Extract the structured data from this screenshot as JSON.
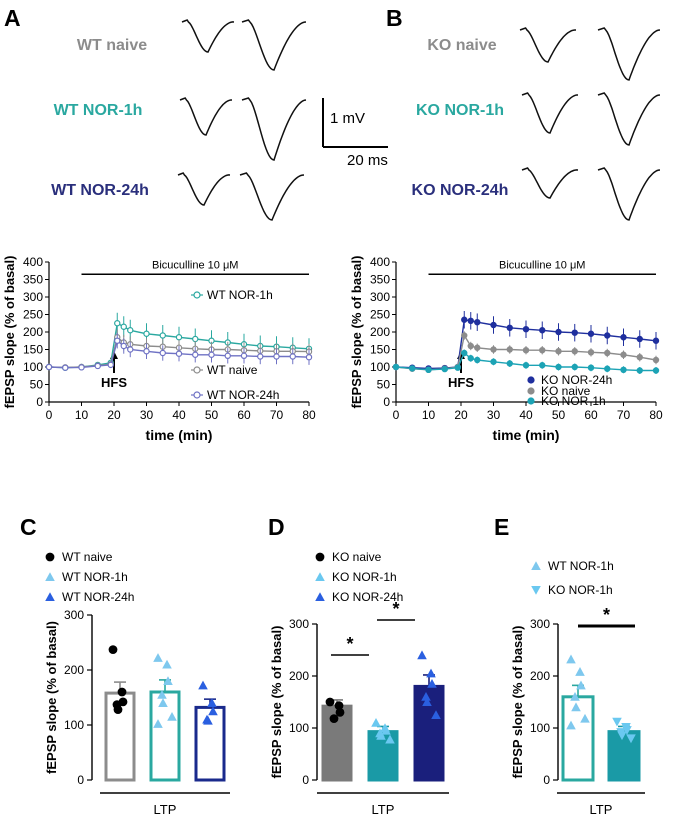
{
  "panel_letters": {
    "a": "A",
    "b": "B",
    "c": "C",
    "d": "D",
    "e": "E"
  },
  "traces_a": {
    "rows": [
      {
        "label": "WT naive",
        "color": "#8c8c8c"
      },
      {
        "label": "WT NOR-1h",
        "color": "#2aa8a0"
      },
      {
        "label": "WT NOR-24h",
        "color": "#2a2f7c"
      }
    ]
  },
  "traces_b": {
    "rows": [
      {
        "label": "KO naive",
        "color": "#8c8c8c"
      },
      {
        "label": "KO NOR-1h",
        "color": "#2aa8a0"
      },
      {
        "label": "KO NOR-24h",
        "color": "#2a2f7c"
      }
    ]
  },
  "scale_bar": {
    "vertical": "1 mV",
    "horizontal": "20 ms"
  },
  "chart_data": [
    {
      "id": "A-timecourse",
      "type": "line",
      "xlabel": "time (min)",
      "ylabel": "fEPSP slope (% of basal)",
      "xlim": [
        0,
        80
      ],
      "ylim": [
        0,
        400
      ],
      "xticks": [
        0,
        10,
        20,
        30,
        40,
        50,
        60,
        70,
        80
      ],
      "yticks": [
        0,
        50,
        100,
        150,
        200,
        250,
        300,
        350,
        400
      ],
      "annotations": {
        "drug": "Bicuculline 10 μM",
        "drug_start": 10,
        "drug_end": 80,
        "stim": "HFS",
        "stim_time": 20
      },
      "series": [
        {
          "name": "WT NOR-1h",
          "color": "#2aa8a0",
          "marker": "open-circle",
          "x": [
            0,
            5,
            10,
            15,
            19,
            21,
            23,
            25,
            30,
            35,
            40,
            45,
            50,
            55,
            60,
            65,
            70,
            75,
            80
          ],
          "y": [
            100,
            98,
            100,
            106,
            112,
            225,
            215,
            205,
            195,
            190,
            185,
            180,
            175,
            170,
            165,
            160,
            158,
            155,
            152
          ],
          "err": 30
        },
        {
          "name": "WT naive",
          "color": "#8c8c8c",
          "marker": "open-circle",
          "x": [
            0,
            5,
            10,
            15,
            19,
            21,
            23,
            25,
            30,
            35,
            40,
            45,
            50,
            55,
            60,
            65,
            70,
            75,
            80
          ],
          "y": [
            100,
            99,
            100,
            104,
            108,
            185,
            170,
            165,
            160,
            158,
            155,
            152,
            150,
            150,
            148,
            146,
            145,
            145,
            144
          ],
          "err": 22
        },
        {
          "name": "WT NOR-24h",
          "color": "#6f72c4",
          "marker": "open-circle",
          "x": [
            0,
            5,
            10,
            15,
            19,
            21,
            23,
            25,
            30,
            35,
            40,
            45,
            50,
            55,
            60,
            65,
            70,
            75,
            80
          ],
          "y": [
            100,
            98,
            99,
            103,
            106,
            175,
            160,
            150,
            145,
            140,
            138,
            135,
            135,
            132,
            132,
            130,
            130,
            130,
            128
          ],
          "err": 22
        }
      ],
      "legend": [
        "WT NOR-1h",
        "WT naive",
        "WT NOR-24h"
      ]
    },
    {
      "id": "B-timecourse",
      "type": "line",
      "xlabel": "time (min)",
      "ylabel": "fEPSP slope (% of basal)",
      "xlim": [
        0,
        80
      ],
      "ylim": [
        0,
        400
      ],
      "xticks": [
        0,
        10,
        20,
        30,
        40,
        50,
        60,
        70,
        80
      ],
      "yticks": [
        0,
        50,
        100,
        150,
        200,
        250,
        300,
        350,
        400
      ],
      "annotations": {
        "drug": "Bicuculline 10 μM",
        "drug_start": 10,
        "drug_end": 80,
        "stim": "HFS",
        "stim_time": 20
      },
      "series": [
        {
          "name": "KO NOR-24h",
          "color": "#1f2f9e",
          "marker": "filled-circle",
          "x": [
            0,
            5,
            10,
            15,
            19,
            21,
            23,
            25,
            30,
            35,
            40,
            45,
            50,
            55,
            60,
            65,
            70,
            75,
            80
          ],
          "y": [
            100,
            98,
            96,
            97,
            100,
            235,
            232,
            228,
            220,
            212,
            208,
            205,
            200,
            198,
            195,
            190,
            185,
            180,
            175
          ],
          "err": 25
        },
        {
          "name": "KO naive",
          "color": "#8c8c8c",
          "marker": "filled-circle",
          "x": [
            0,
            5,
            10,
            15,
            19,
            21,
            23,
            25,
            30,
            35,
            40,
            45,
            50,
            55,
            60,
            65,
            70,
            75,
            80
          ],
          "y": [
            100,
            95,
            92,
            95,
            100,
            190,
            160,
            155,
            150,
            150,
            148,
            148,
            145,
            145,
            142,
            140,
            135,
            128,
            120
          ],
          "err": 12
        },
        {
          "name": "KO NOR-1h",
          "color": "#1ca3b5",
          "marker": "filled-circle",
          "x": [
            0,
            5,
            10,
            15,
            19,
            21,
            23,
            25,
            30,
            35,
            40,
            45,
            50,
            55,
            60,
            65,
            70,
            75,
            80
          ],
          "y": [
            100,
            96,
            92,
            94,
            98,
            140,
            125,
            120,
            115,
            110,
            105,
            105,
            100,
            100,
            98,
            95,
            92,
            90,
            90
          ],
          "err": 10
        }
      ],
      "legend": [
        "KO NOR-24h",
        "KO naive",
        "KO NOR-1h"
      ]
    },
    {
      "id": "C-bars",
      "type": "bar",
      "ylabel": "fEPSP slope (% of basal)",
      "xlabel": "LTP",
      "ylim": [
        0,
        300
      ],
      "yticks": [
        0,
        100,
        200,
        300
      ],
      "legend": [
        "WT naive",
        "WT NOR-1h",
        "WT NOR-24h"
      ],
      "bars": [
        {
          "name": "WT naive",
          "value": 158,
          "sem": 20,
          "edge": "#8c8c8c",
          "fill": "#ffffff",
          "marker": "dot",
          "mcolor": "#000000",
          "points": [
            237,
            160,
            142,
            137,
            128
          ]
        },
        {
          "name": "WT NOR-1h",
          "value": 160,
          "sem": 22,
          "edge": "#2aa8a0",
          "fill": "#ffffff",
          "marker": "tri-up",
          "mcolor": "#7ec8ee",
          "points": [
            222,
            210,
            180,
            155,
            140,
            115,
            102
          ]
        },
        {
          "name": "WT NOR-24h",
          "value": 132,
          "sem": 15,
          "edge": "#1a2a8c",
          "fill": "#ffffff",
          "marker": "tri-up",
          "mcolor": "#2a5fe0",
          "points": [
            172,
            140,
            125,
            110,
            108
          ]
        }
      ]
    },
    {
      "id": "D-bars",
      "type": "bar",
      "ylabel": "fEPSP slope (% of basal)",
      "xlabel": "LTP",
      "ylim": [
        0,
        300
      ],
      "yticks": [
        0,
        100,
        200,
        300
      ],
      "legend": [
        "KO naive",
        "KO NOR-1h",
        "KO NOR-24h"
      ],
      "significance": "*",
      "bars": [
        {
          "name": "KO naive",
          "value": 142,
          "sem": 12,
          "edge": "#7a7a7a",
          "fill": "#7a7a7a",
          "marker": "dot",
          "mcolor": "#000000",
          "points": [
            150,
            143,
            130,
            118
          ]
        },
        {
          "name": "KO NOR-1h",
          "value": 93,
          "sem": 10,
          "edge": "#1a9aa6",
          "fill": "#1a9aa6",
          "marker": "tri-up",
          "mcolor": "#6ac8f0",
          "points": [
            110,
            100,
            95,
            90,
            85,
            78
          ]
        },
        {
          "name": "KO NOR-24h",
          "value": 180,
          "sem": 22,
          "edge": "#1a1f7c",
          "fill": "#1a1f7c",
          "marker": "tri-up",
          "mcolor": "#2a5fe0",
          "points": [
            240,
            205,
            185,
            160,
            150,
            125
          ]
        }
      ]
    },
    {
      "id": "E-bars",
      "type": "bar",
      "ylabel": "fEPSP slope (% of basal)",
      "xlabel": "LTP",
      "ylim": [
        0,
        300
      ],
      "yticks": [
        0,
        100,
        200,
        300
      ],
      "legend": [
        "WT NOR-1h",
        "KO NOR-1h"
      ],
      "significance": "*",
      "bars": [
        {
          "name": "WT NOR-1h",
          "value": 160,
          "sem": 22,
          "edge": "#2aa8a0",
          "fill": "#ffffff",
          "marker": "tri-up",
          "mcolor": "#7ec8ee",
          "points": [
            232,
            208,
            182,
            160,
            140,
            118,
            105
          ]
        },
        {
          "name": "KO NOR-1h",
          "value": 93,
          "sem": 10,
          "edge": "#1a9aa6",
          "fill": "#1a9aa6",
          "marker": "tri-down",
          "mcolor": "#6ac8f0",
          "points": [
            112,
            102,
            96,
            92,
            86,
            80
          ]
        }
      ]
    }
  ]
}
